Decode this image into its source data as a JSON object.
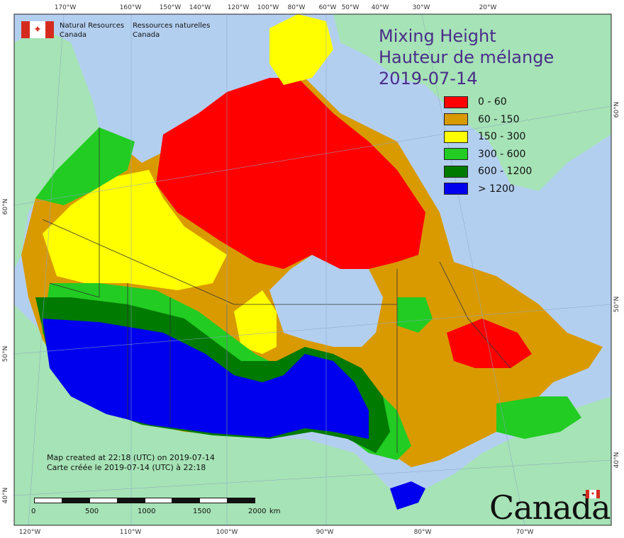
{
  "map": {
    "title_en": "Mixing Height",
    "title_fr": "Hauteur de mélange",
    "date": "2019-07-14",
    "agency_en_line1": "Natural Resources",
    "agency_en_line2": "Canada",
    "agency_fr_line1": "Ressources naturelles",
    "agency_fr_line2": "Canada",
    "credit_en": "Map created at 22:18 (UTC) on 2019-07-14",
    "credit_fr": "Carte créée le 2019-07-14 (UTC) à 22:18",
    "wordmark": "Canada",
    "flag_symbol": "maple-leaf",
    "scale": {
      "labels": [
        "0",
        "500",
        "1000",
        "1500",
        "2000"
      ],
      "unit": "km"
    }
  },
  "legend": [
    {
      "label": "0 - 60",
      "color": "#ff0000"
    },
    {
      "label": "60 - 150",
      "color": "#d99a00"
    },
    {
      "label": "150 - 300",
      "color": "#ffff00"
    },
    {
      "label": "300 - 600",
      "color": "#22cc22"
    },
    {
      "label": "600 - 1200",
      "color": "#007a00"
    },
    {
      "label": "> 1200",
      "color": "#0000ee"
    }
  ],
  "graticule": {
    "top_lon": [
      "170°W",
      "160°W",
      "150°W",
      "140°W",
      "120°W",
      "100°W",
      "80°W",
      "60°W",
      "50°W",
      "40°W",
      "30°W",
      "20°W"
    ],
    "bottom_lon": [
      "120°W",
      "110°W",
      "100°W",
      "90°W",
      "80°W",
      "70°W"
    ],
    "left_lat": [
      "60°N",
      "50°N",
      "40°N"
    ],
    "right_lat": [
      "60°N",
      "50°N",
      "40°N"
    ]
  },
  "colors": {
    "ocean": "#b3cff0",
    "land_other": "#a6e3b6"
  }
}
